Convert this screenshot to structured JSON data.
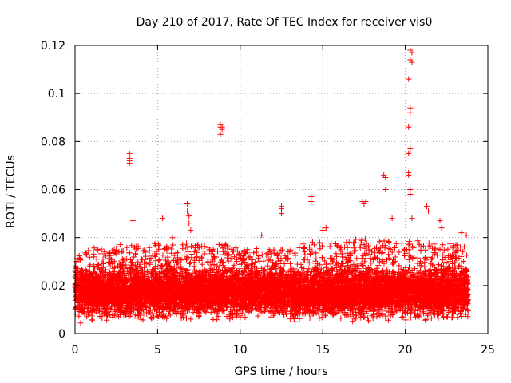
{
  "chart_data": {
    "type": "scatter",
    "title": "Day 210 of 2017, Rate Of TEC Index for receiver vis0",
    "xlabel": "GPS time / hours",
    "ylabel": "ROTI / TECUs",
    "xlim": [
      0,
      25
    ],
    "ylim": [
      0,
      0.12
    ],
    "x_ticks": [
      0,
      5,
      10,
      15,
      20,
      25
    ],
    "y_ticks": [
      0,
      0.02,
      0.04,
      0.06,
      0.08,
      0.1,
      0.12
    ],
    "x_tick_labels": [
      "0",
      "5",
      "10",
      "15",
      "20",
      "25"
    ],
    "y_tick_labels": [
      "0",
      "0.02",
      "0.04",
      "0.06",
      "0.08",
      "0.1",
      "0.12"
    ],
    "grid": true,
    "marker": "+",
    "color": "#ff0000",
    "dense_band": {
      "description": "dense scatter of ROTI samples throughout the day",
      "x_range": [
        0,
        23.8
      ],
      "typical_y_range": [
        0.004,
        0.03
      ],
      "upper_envelope": [
        [
          0,
          0.031
        ],
        [
          1,
          0.037
        ],
        [
          2,
          0.035
        ],
        [
          3,
          0.038
        ],
        [
          4,
          0.036
        ],
        [
          5,
          0.038
        ],
        [
          6,
          0.037
        ],
        [
          7,
          0.038
        ],
        [
          8,
          0.036
        ],
        [
          9,
          0.038
        ],
        [
          10,
          0.035
        ],
        [
          11,
          0.036
        ],
        [
          12,
          0.035
        ],
        [
          13,
          0.035
        ],
        [
          14,
          0.038
        ],
        [
          15,
          0.039
        ],
        [
          16,
          0.037
        ],
        [
          17,
          0.04
        ],
        [
          18,
          0.039
        ],
        [
          19,
          0.039
        ],
        [
          20,
          0.038
        ],
        [
          21,
          0.04
        ],
        [
          22,
          0.037
        ],
        [
          23,
          0.038
        ],
        [
          23.8,
          0.036
        ]
      ]
    },
    "notable_points": [
      {
        "x": 3.3,
        "y": 0.075
      },
      {
        "x": 3.3,
        "y": 0.074
      },
      {
        "x": 3.3,
        "y": 0.073
      },
      {
        "x": 3.3,
        "y": 0.072
      },
      {
        "x": 3.3,
        "y": 0.071
      },
      {
        "x": 3.5,
        "y": 0.047
      },
      {
        "x": 5.3,
        "y": 0.048
      },
      {
        "x": 5.9,
        "y": 0.04
      },
      {
        "x": 6.8,
        "y": 0.054
      },
      {
        "x": 6.8,
        "y": 0.051
      },
      {
        "x": 6.9,
        "y": 0.049
      },
      {
        "x": 6.9,
        "y": 0.046
      },
      {
        "x": 7.0,
        "y": 0.043
      },
      {
        "x": 8.8,
        "y": 0.087
      },
      {
        "x": 8.8,
        "y": 0.086
      },
      {
        "x": 8.9,
        "y": 0.085
      },
      {
        "x": 8.9,
        "y": 0.086
      },
      {
        "x": 8.8,
        "y": 0.083
      },
      {
        "x": 11.3,
        "y": 0.041
      },
      {
        "x": 12.5,
        "y": 0.053
      },
      {
        "x": 12.5,
        "y": 0.052
      },
      {
        "x": 12.5,
        "y": 0.05
      },
      {
        "x": 14.3,
        "y": 0.057
      },
      {
        "x": 14.3,
        "y": 0.056
      },
      {
        "x": 14.3,
        "y": 0.055
      },
      {
        "x": 15.0,
        "y": 0.043
      },
      {
        "x": 15.2,
        "y": 0.044
      },
      {
        "x": 17.4,
        "y": 0.055
      },
      {
        "x": 17.6,
        "y": 0.055
      },
      {
        "x": 17.5,
        "y": 0.054
      },
      {
        "x": 18.7,
        "y": 0.066
      },
      {
        "x": 18.8,
        "y": 0.065
      },
      {
        "x": 18.8,
        "y": 0.06
      },
      {
        "x": 19.2,
        "y": 0.048
      },
      {
        "x": 20.3,
        "y": 0.118
      },
      {
        "x": 20.4,
        "y": 0.117
      },
      {
        "x": 20.3,
        "y": 0.114
      },
      {
        "x": 20.4,
        "y": 0.113
      },
      {
        "x": 20.2,
        "y": 0.106
      },
      {
        "x": 20.3,
        "y": 0.094
      },
      {
        "x": 20.3,
        "y": 0.092
      },
      {
        "x": 20.2,
        "y": 0.086
      },
      {
        "x": 20.3,
        "y": 0.077
      },
      {
        "x": 20.2,
        "y": 0.075
      },
      {
        "x": 20.2,
        "y": 0.067
      },
      {
        "x": 20.2,
        "y": 0.066
      },
      {
        "x": 20.3,
        "y": 0.06
      },
      {
        "x": 20.3,
        "y": 0.058
      },
      {
        "x": 20.4,
        "y": 0.048
      },
      {
        "x": 21.3,
        "y": 0.053
      },
      {
        "x": 21.4,
        "y": 0.051
      },
      {
        "x": 22.1,
        "y": 0.047
      },
      {
        "x": 22.2,
        "y": 0.044
      },
      {
        "x": 23.4,
        "y": 0.042
      },
      {
        "x": 23.7,
        "y": 0.041
      }
    ]
  }
}
